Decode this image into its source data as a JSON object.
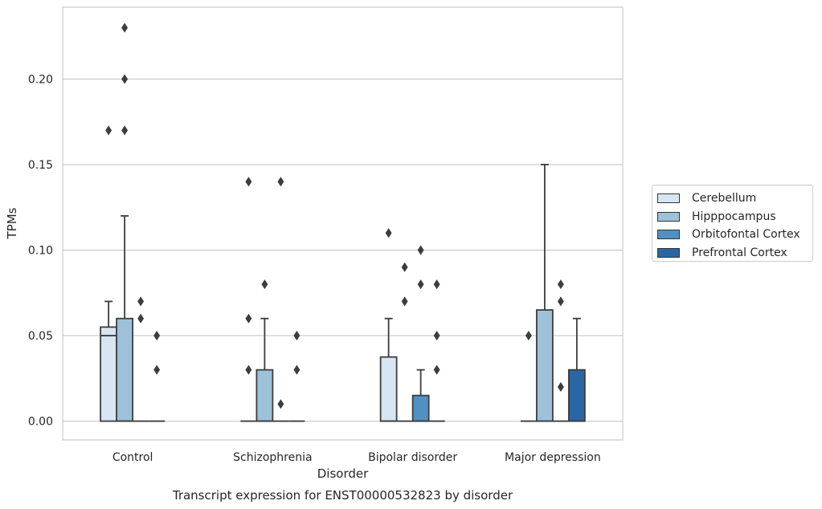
{
  "chart_data": {
    "type": "boxplot",
    "title": "Transcript expression for ENST00000532823 by disorder",
    "xlabel": "Disorder",
    "ylabel": "TPMs",
    "categories": [
      "Control",
      "Schizophrenia",
      "Bipolar disorder",
      "Major depression"
    ],
    "ylim": [
      -0.011,
      0.242
    ],
    "yticks": [
      "0.00",
      "0.05",
      "0.10",
      "0.15",
      "0.20"
    ],
    "grid": true,
    "legend_position": "right",
    "series": [
      {
        "name": "Cerebellum",
        "color": "#d8e5f2",
        "boxes": [
          {
            "min": 0,
            "q1": 0,
            "median": 0.05,
            "q3": 0.055,
            "max": 0.07,
            "outliers": [
              0.17
            ]
          },
          {
            "min": 0,
            "q1": 0,
            "median": 0,
            "q3": 0,
            "max": 0,
            "outliers": [
              0.14,
              0.06,
              0.03
            ]
          },
          {
            "min": 0,
            "q1": 0,
            "median": 0,
            "q3": 0.0375,
            "max": 0.06,
            "outliers": [
              0.11
            ]
          },
          {
            "min": 0,
            "q1": 0,
            "median": 0,
            "q3": 0,
            "max": 0,
            "outliers": [
              0.05
            ]
          }
        ]
      },
      {
        "name": "Hipppocampus",
        "color": "#9ec1da",
        "boxes": [
          {
            "min": 0,
            "q1": 0,
            "median": 0,
            "q3": 0.06,
            "max": 0.12,
            "outliers": [
              0.23,
              0.2,
              0.17
            ]
          },
          {
            "min": 0,
            "q1": 0,
            "median": 0,
            "q3": 0.03,
            "max": 0.06,
            "outliers": [
              0.08
            ]
          },
          {
            "min": 0,
            "q1": 0,
            "median": 0,
            "q3": 0,
            "max": 0,
            "outliers": [
              0.09,
              0.07
            ]
          },
          {
            "min": 0,
            "q1": 0,
            "median": 0,
            "q3": 0.065,
            "max": 0.15,
            "outliers": []
          }
        ]
      },
      {
        "name": "Orbitofontal Cortex",
        "color": "#5290c1",
        "boxes": [
          {
            "min": 0,
            "q1": 0,
            "median": 0,
            "q3": 0,
            "max": 0,
            "outliers": [
              0.07,
              0.06
            ]
          },
          {
            "min": 0,
            "q1": 0,
            "median": 0,
            "q3": 0,
            "max": 0,
            "outliers": [
              0.14,
              0.01
            ]
          },
          {
            "min": 0,
            "q1": 0,
            "median": 0,
            "q3": 0.015,
            "max": 0.03,
            "outliers": [
              0.1,
              0.08
            ]
          },
          {
            "min": 0,
            "q1": 0,
            "median": 0,
            "q3": 0,
            "max": 0,
            "outliers": [
              0.08,
              0.07,
              0.02
            ]
          }
        ]
      },
      {
        "name": "Prefrontal Cortex",
        "color": "#2a66a3",
        "boxes": [
          {
            "min": 0,
            "q1": 0,
            "median": 0,
            "q3": 0,
            "max": 0,
            "outliers": [
              0.05,
              0.03
            ]
          },
          {
            "min": 0,
            "q1": 0,
            "median": 0,
            "q3": 0,
            "max": 0,
            "outliers": [
              0.05,
              0.03
            ]
          },
          {
            "min": 0,
            "q1": 0,
            "median": 0,
            "q3": 0,
            "max": 0,
            "outliers": [
              0.08,
              0.05,
              0.03
            ]
          },
          {
            "min": 0,
            "q1": 0,
            "median": 0,
            "q3": 0.03,
            "max": 0.06,
            "outliers": []
          }
        ]
      }
    ]
  }
}
